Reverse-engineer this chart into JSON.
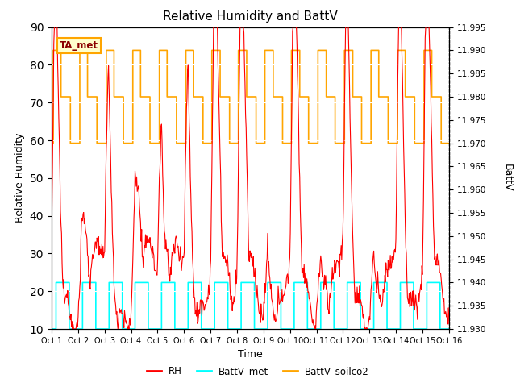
{
  "title": "Relative Humidity and BattV",
  "xlabel": "Time",
  "ylabel_left": "Relative Humidity",
  "ylabel_right": "BattV",
  "annotation": "TA_met",
  "ylim_left": [
    10,
    90
  ],
  "ylim_right": [
    11.93,
    11.995
  ],
  "yticks_left": [
    10,
    20,
    30,
    40,
    50,
    60,
    70,
    80,
    90
  ],
  "yticks_right": [
    11.93,
    11.935,
    11.94,
    11.945,
    11.95,
    11.955,
    11.96,
    11.965,
    11.97,
    11.975,
    11.98,
    11.985,
    11.99,
    11.995
  ],
  "xtick_labels": [
    "Oct 1",
    "Oct 2",
    "Oct 3",
    "Oct 4",
    "Oct 5",
    "Oct 6",
    "Oct 7",
    "Oct 8",
    "Oct 9",
    "Oct 10",
    "Oct 11",
    "Oct 12",
    "Oct 13",
    "Oct 14",
    "Oct 15",
    "Oct 16"
  ],
  "background_color": "#e8e8e8",
  "rh_color": "#ff0000",
  "battv_met_color": "#00ffff",
  "battv_soilco2_color": "#ffa500",
  "grid_color": "white",
  "n_days": 15,
  "battv_met_high": 11.94,
  "battv_met_low": 11.93,
  "battv_soilco2_high": 11.99,
  "battv_soilco2_mid": 11.98,
  "battv_soilco2_low": 11.97
}
